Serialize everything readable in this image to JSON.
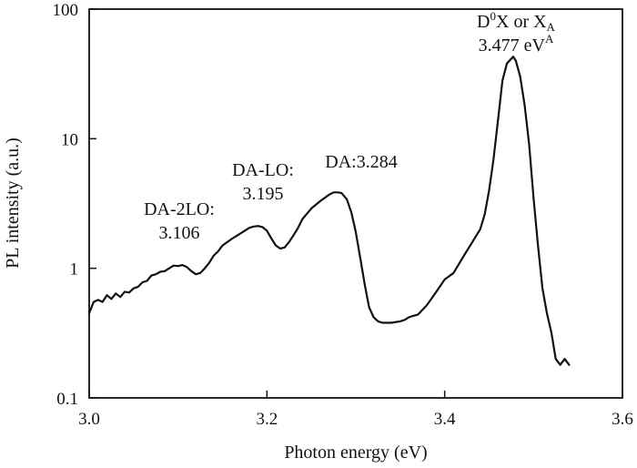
{
  "chart_data": {
    "type": "line",
    "title": "",
    "xlabel": "Photon energy (eV)",
    "ylabel": "PL intensity (a.u.)",
    "xlim": [
      3.0,
      3.6
    ],
    "ylim": [
      0.1,
      100
    ],
    "yscale": "log",
    "grid": false,
    "x_ticks": [
      3.0,
      3.2,
      3.4,
      3.6
    ],
    "x_tick_labels": [
      "3.0",
      "3.2",
      "3.4",
      "3.6"
    ],
    "y_ticks": [
      0.1,
      1,
      10,
      100
    ],
    "y_tick_labels": [
      "0.1",
      "1",
      "10",
      "100"
    ],
    "series": [
      {
        "x": [
          3.0,
          3.005,
          3.01,
          3.015,
          3.02,
          3.025,
          3.03,
          3.035,
          3.04,
          3.045,
          3.05,
          3.055,
          3.06,
          3.065,
          3.07,
          3.075,
          3.08,
          3.085,
          3.09,
          3.095,
          3.1,
          3.105,
          3.11,
          3.115,
          3.12,
          3.125,
          3.13,
          3.135,
          3.14,
          3.145,
          3.15,
          3.16,
          3.17,
          3.18,
          3.185,
          3.19,
          3.195,
          3.2,
          3.205,
          3.21,
          3.215,
          3.22,
          3.225,
          3.23,
          3.235,
          3.24,
          3.25,
          3.26,
          3.27,
          3.275,
          3.28,
          3.284,
          3.29,
          3.295,
          3.3,
          3.305,
          3.31,
          3.315,
          3.32,
          3.325,
          3.33,
          3.335,
          3.34,
          3.35,
          3.355,
          3.36,
          3.365,
          3.37,
          3.38,
          3.39,
          3.4,
          3.41,
          3.42,
          3.43,
          3.44,
          3.445,
          3.45,
          3.455,
          3.46,
          3.465,
          3.47,
          3.477,
          3.48,
          3.485,
          3.49,
          3.495,
          3.5,
          3.505,
          3.51,
          3.515,
          3.52,
          3.525,
          3.53,
          3.535,
          3.54
        ],
        "y": [
          0.45,
          0.55,
          0.57,
          0.55,
          0.62,
          0.58,
          0.64,
          0.6,
          0.66,
          0.65,
          0.7,
          0.72,
          0.78,
          0.8,
          0.88,
          0.9,
          0.94,
          0.95,
          1.0,
          1.05,
          1.04,
          1.06,
          1.02,
          0.95,
          0.9,
          0.92,
          1.0,
          1.1,
          1.25,
          1.35,
          1.5,
          1.68,
          1.85,
          2.05,
          2.1,
          2.12,
          2.08,
          1.95,
          1.7,
          1.5,
          1.42,
          1.45,
          1.6,
          1.8,
          2.05,
          2.4,
          2.9,
          3.3,
          3.7,
          3.85,
          3.85,
          3.8,
          3.4,
          2.7,
          1.9,
          1.2,
          0.75,
          0.5,
          0.42,
          0.39,
          0.38,
          0.38,
          0.38,
          0.39,
          0.4,
          0.42,
          0.43,
          0.44,
          0.52,
          0.65,
          0.82,
          0.92,
          1.2,
          1.55,
          2.0,
          2.6,
          4.0,
          7.0,
          14.0,
          28.0,
          38.0,
          43.0,
          40.0,
          30.0,
          18.0,
          9.0,
          3.5,
          1.5,
          0.7,
          0.45,
          0.32,
          0.2,
          0.18,
          0.2,
          0.18
        ]
      }
    ],
    "annotations": [
      {
        "lines": [
          "DA-2LO:",
          "3.106"
        ]
      },
      {
        "lines": [
          "DA-LO:",
          "3.195"
        ]
      },
      {
        "lines": [
          "DA:3.284"
        ]
      },
      {
        "line1": {
          "base": "D",
          "sup": "0",
          "rest": "X or X",
          "sub": "A"
        },
        "line2": {
          "base": "3.477 eV",
          "sup": "A"
        }
      }
    ]
  }
}
